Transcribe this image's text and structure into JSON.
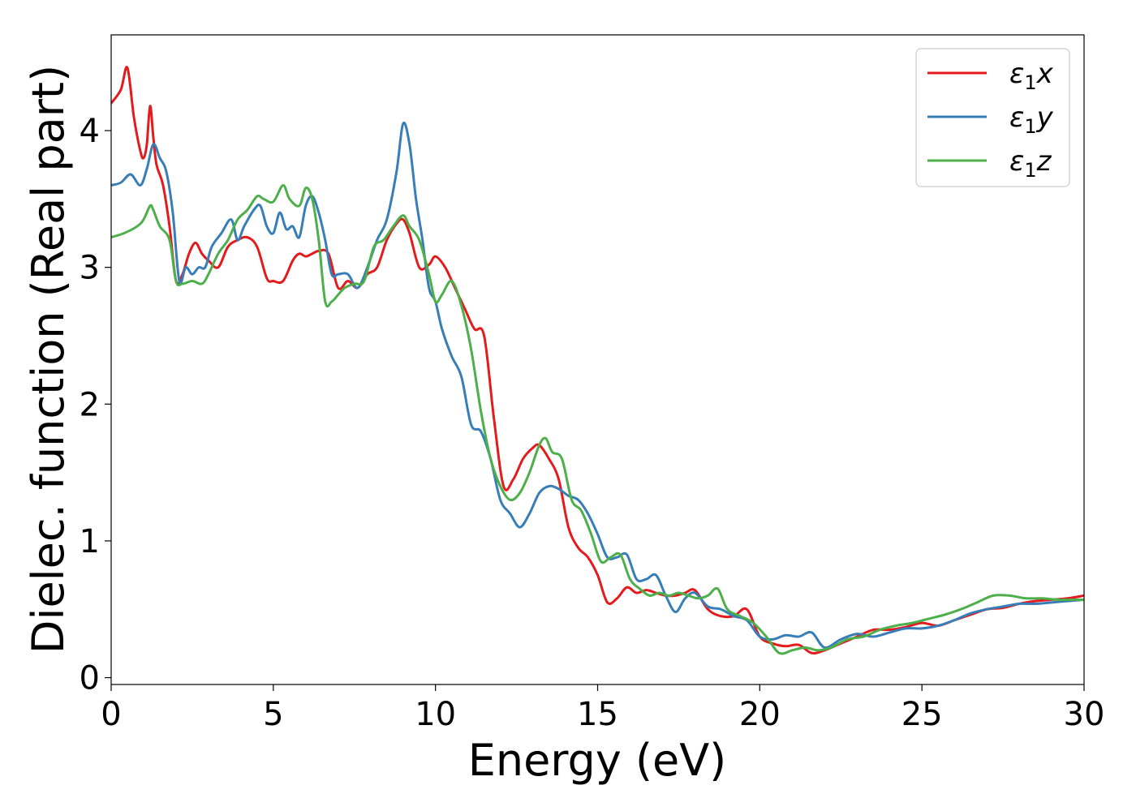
{
  "chart_data": {
    "type": "line",
    "title": "",
    "xlabel": "Energy (eV)",
    "ylabel": "Dielec. function (Real part)",
    "xlim": [
      0,
      30
    ],
    "ylim": [
      -0.05,
      4.7
    ],
    "xticks": [
      0,
      5,
      10,
      15,
      20,
      25,
      30
    ],
    "yticks": [
      0,
      1,
      2,
      3,
      4
    ],
    "grid": false,
    "legend_position": "top-right",
    "series": [
      {
        "name": "ε1x",
        "legend_main": "ε",
        "legend_sub": "1",
        "legend_suffix": "x",
        "color": "#e41a1c",
        "x": [
          0,
          0.3,
          0.5,
          0.7,
          0.9,
          1.0,
          1.1,
          1.2,
          1.3,
          1.4,
          1.6,
          1.8,
          2.0,
          2.2,
          2.4,
          2.6,
          2.8,
          3.0,
          3.3,
          3.6,
          3.9,
          4.2,
          4.5,
          4.8,
          5.0,
          5.3,
          5.6,
          5.8,
          6.0,
          6.2,
          6.4,
          6.7,
          7.0,
          7.3,
          7.6,
          7.9,
          8.2,
          8.5,
          8.8,
          9.0,
          9.2,
          9.5,
          9.8,
          10.0,
          10.3,
          10.6,
          10.9,
          11.2,
          11.5,
          11.8,
          12.1,
          12.4,
          12.7,
          13.0,
          13.2,
          13.5,
          13.8,
          14.1,
          14.4,
          14.7,
          15.0,
          15.3,
          15.6,
          15.9,
          16.2,
          16.5,
          16.8,
          17.1,
          17.4,
          17.7,
          18.0,
          18.4,
          18.8,
          19.2,
          19.6,
          20.0,
          20.4,
          20.8,
          21.2,
          21.6,
          22.0,
          22.5,
          23.0,
          23.5,
          24.0,
          24.5,
          25.0,
          25.5,
          26.0,
          26.5,
          27.0,
          27.5,
          28.0,
          28.5,
          29.0,
          29.5,
          30.0
        ],
        "y": [
          4.2,
          4.3,
          4.46,
          4.1,
          3.85,
          3.8,
          3.9,
          4.18,
          3.95,
          3.75,
          3.6,
          3.3,
          2.9,
          2.95,
          3.1,
          3.18,
          3.1,
          3.05,
          3.0,
          3.15,
          3.2,
          3.22,
          3.15,
          2.92,
          2.9,
          2.9,
          3.05,
          3.1,
          3.08,
          3.1,
          3.12,
          3.1,
          2.85,
          2.9,
          2.85,
          2.95,
          3.0,
          3.2,
          3.32,
          3.35,
          3.25,
          3.0,
          3.02,
          3.08,
          3.0,
          2.85,
          2.7,
          2.55,
          2.5,
          1.9,
          1.4,
          1.45,
          1.6,
          1.68,
          1.7,
          1.6,
          1.45,
          1.1,
          0.95,
          0.88,
          0.75,
          0.55,
          0.58,
          0.66,
          0.62,
          0.64,
          0.62,
          0.6,
          0.6,
          0.62,
          0.64,
          0.5,
          0.45,
          0.45,
          0.5,
          0.3,
          0.25,
          0.23,
          0.24,
          0.18,
          0.2,
          0.25,
          0.3,
          0.35,
          0.35,
          0.37,
          0.4,
          0.38,
          0.42,
          0.46,
          0.5,
          0.51,
          0.54,
          0.56,
          0.57,
          0.58,
          0.6
        ]
      },
      {
        "name": "ε1y",
        "legend_main": "ε",
        "legend_sub": "1",
        "legend_suffix": "y",
        "color": "#377eb8",
        "x": [
          0,
          0.3,
          0.6,
          0.9,
          1.1,
          1.3,
          1.5,
          1.7,
          1.9,
          2.1,
          2.3,
          2.5,
          2.7,
          2.9,
          3.1,
          3.4,
          3.7,
          3.9,
          4.1,
          4.4,
          4.6,
          4.8,
          5.0,
          5.2,
          5.4,
          5.6,
          5.8,
          6.0,
          6.2,
          6.4,
          6.6,
          6.8,
          7.0,
          7.3,
          7.6,
          7.9,
          8.2,
          8.5,
          8.8,
          9.0,
          9.2,
          9.4,
          9.6,
          9.8,
          10.0,
          10.2,
          10.5,
          10.8,
          11.1,
          11.4,
          11.7,
          12.0,
          12.3,
          12.6,
          12.9,
          13.2,
          13.5,
          13.8,
          14.1,
          14.4,
          14.7,
          15.0,
          15.3,
          15.6,
          15.9,
          16.2,
          16.5,
          16.8,
          17.1,
          17.4,
          17.7,
          18.0,
          18.4,
          18.8,
          19.2,
          19.6,
          20.0,
          20.4,
          20.8,
          21.2,
          21.6,
          22.0,
          22.5,
          23.0,
          23.5,
          24.0,
          24.5,
          25.0,
          25.5,
          26.0,
          26.5,
          27.0,
          27.5,
          28.0,
          28.5,
          29.0,
          29.5,
          30.0
        ],
        "y": [
          3.6,
          3.62,
          3.68,
          3.6,
          3.72,
          3.9,
          3.8,
          3.7,
          3.4,
          2.9,
          3.0,
          2.95,
          3.0,
          3.0,
          3.15,
          3.25,
          3.35,
          3.2,
          3.3,
          3.42,
          3.45,
          3.3,
          3.25,
          3.4,
          3.28,
          3.3,
          3.22,
          3.45,
          3.52,
          3.4,
          3.2,
          2.95,
          2.95,
          2.95,
          2.85,
          3.0,
          3.2,
          3.35,
          3.7,
          4.05,
          3.9,
          3.5,
          3.2,
          2.85,
          2.75,
          2.55,
          2.35,
          2.2,
          1.85,
          1.8,
          1.6,
          1.3,
          1.2,
          1.1,
          1.2,
          1.35,
          1.4,
          1.38,
          1.33,
          1.3,
          1.2,
          1.05,
          0.88,
          0.88,
          0.9,
          0.72,
          0.72,
          0.75,
          0.6,
          0.48,
          0.58,
          0.62,
          0.52,
          0.5,
          0.45,
          0.42,
          0.3,
          0.28,
          0.31,
          0.3,
          0.33,
          0.22,
          0.28,
          0.32,
          0.3,
          0.33,
          0.36,
          0.36,
          0.38,
          0.42,
          0.47,
          0.5,
          0.52,
          0.54,
          0.54,
          0.55,
          0.56,
          0.57
        ]
      },
      {
        "name": "ε1z",
        "legend_main": "ε",
        "legend_sub": "1",
        "legend_suffix": "z",
        "color": "#4daf4a",
        "x": [
          0,
          0.4,
          0.8,
          1.0,
          1.2,
          1.3,
          1.5,
          1.8,
          2.0,
          2.2,
          2.5,
          2.8,
          3.0,
          3.3,
          3.6,
          3.9,
          4.2,
          4.5,
          4.7,
          5.0,
          5.3,
          5.5,
          5.8,
          6.0,
          6.2,
          6.4,
          6.6,
          6.8,
          7.0,
          7.2,
          7.5,
          7.8,
          8.1,
          8.4,
          8.7,
          9.0,
          9.2,
          9.5,
          9.8,
          10.0,
          10.2,
          10.5,
          10.8,
          11.1,
          11.4,
          11.7,
          12.0,
          12.3,
          12.6,
          12.9,
          13.2,
          13.4,
          13.6,
          13.9,
          14.2,
          14.5,
          14.8,
          15.1,
          15.4,
          15.7,
          16.0,
          16.3,
          16.6,
          16.9,
          17.2,
          17.5,
          17.8,
          18.1,
          18.4,
          18.7,
          19.0,
          19.4,
          19.8,
          20.2,
          20.6,
          21.0,
          21.4,
          21.8,
          22.2,
          22.7,
          23.2,
          23.7,
          24.2,
          24.7,
          25.2,
          25.7,
          26.2,
          26.7,
          27.2,
          27.7,
          28.2,
          28.7,
          29.2,
          29.7,
          30.0
        ],
        "y": [
          3.22,
          3.25,
          3.3,
          3.35,
          3.45,
          3.42,
          3.3,
          3.2,
          2.9,
          2.88,
          2.9,
          2.88,
          2.95,
          3.1,
          3.2,
          3.35,
          3.42,
          3.52,
          3.5,
          3.48,
          3.6,
          3.5,
          3.45,
          3.58,
          3.5,
          3.2,
          2.75,
          2.75,
          2.8,
          2.85,
          2.88,
          2.9,
          3.15,
          3.2,
          3.3,
          3.38,
          3.3,
          3.2,
          2.95,
          2.75,
          2.8,
          2.9,
          2.72,
          2.4,
          1.95,
          1.6,
          1.4,
          1.3,
          1.35,
          1.5,
          1.7,
          1.75,
          1.65,
          1.6,
          1.3,
          1.22,
          1.05,
          0.85,
          0.88,
          0.9,
          0.72,
          0.65,
          0.6,
          0.62,
          0.6,
          0.62,
          0.6,
          0.58,
          0.6,
          0.65,
          0.5,
          0.45,
          0.4,
          0.3,
          0.18,
          0.2,
          0.22,
          0.2,
          0.22,
          0.28,
          0.3,
          0.35,
          0.38,
          0.4,
          0.43,
          0.46,
          0.5,
          0.55,
          0.6,
          0.6,
          0.58,
          0.58,
          0.57,
          0.57,
          0.57
        ]
      }
    ]
  }
}
